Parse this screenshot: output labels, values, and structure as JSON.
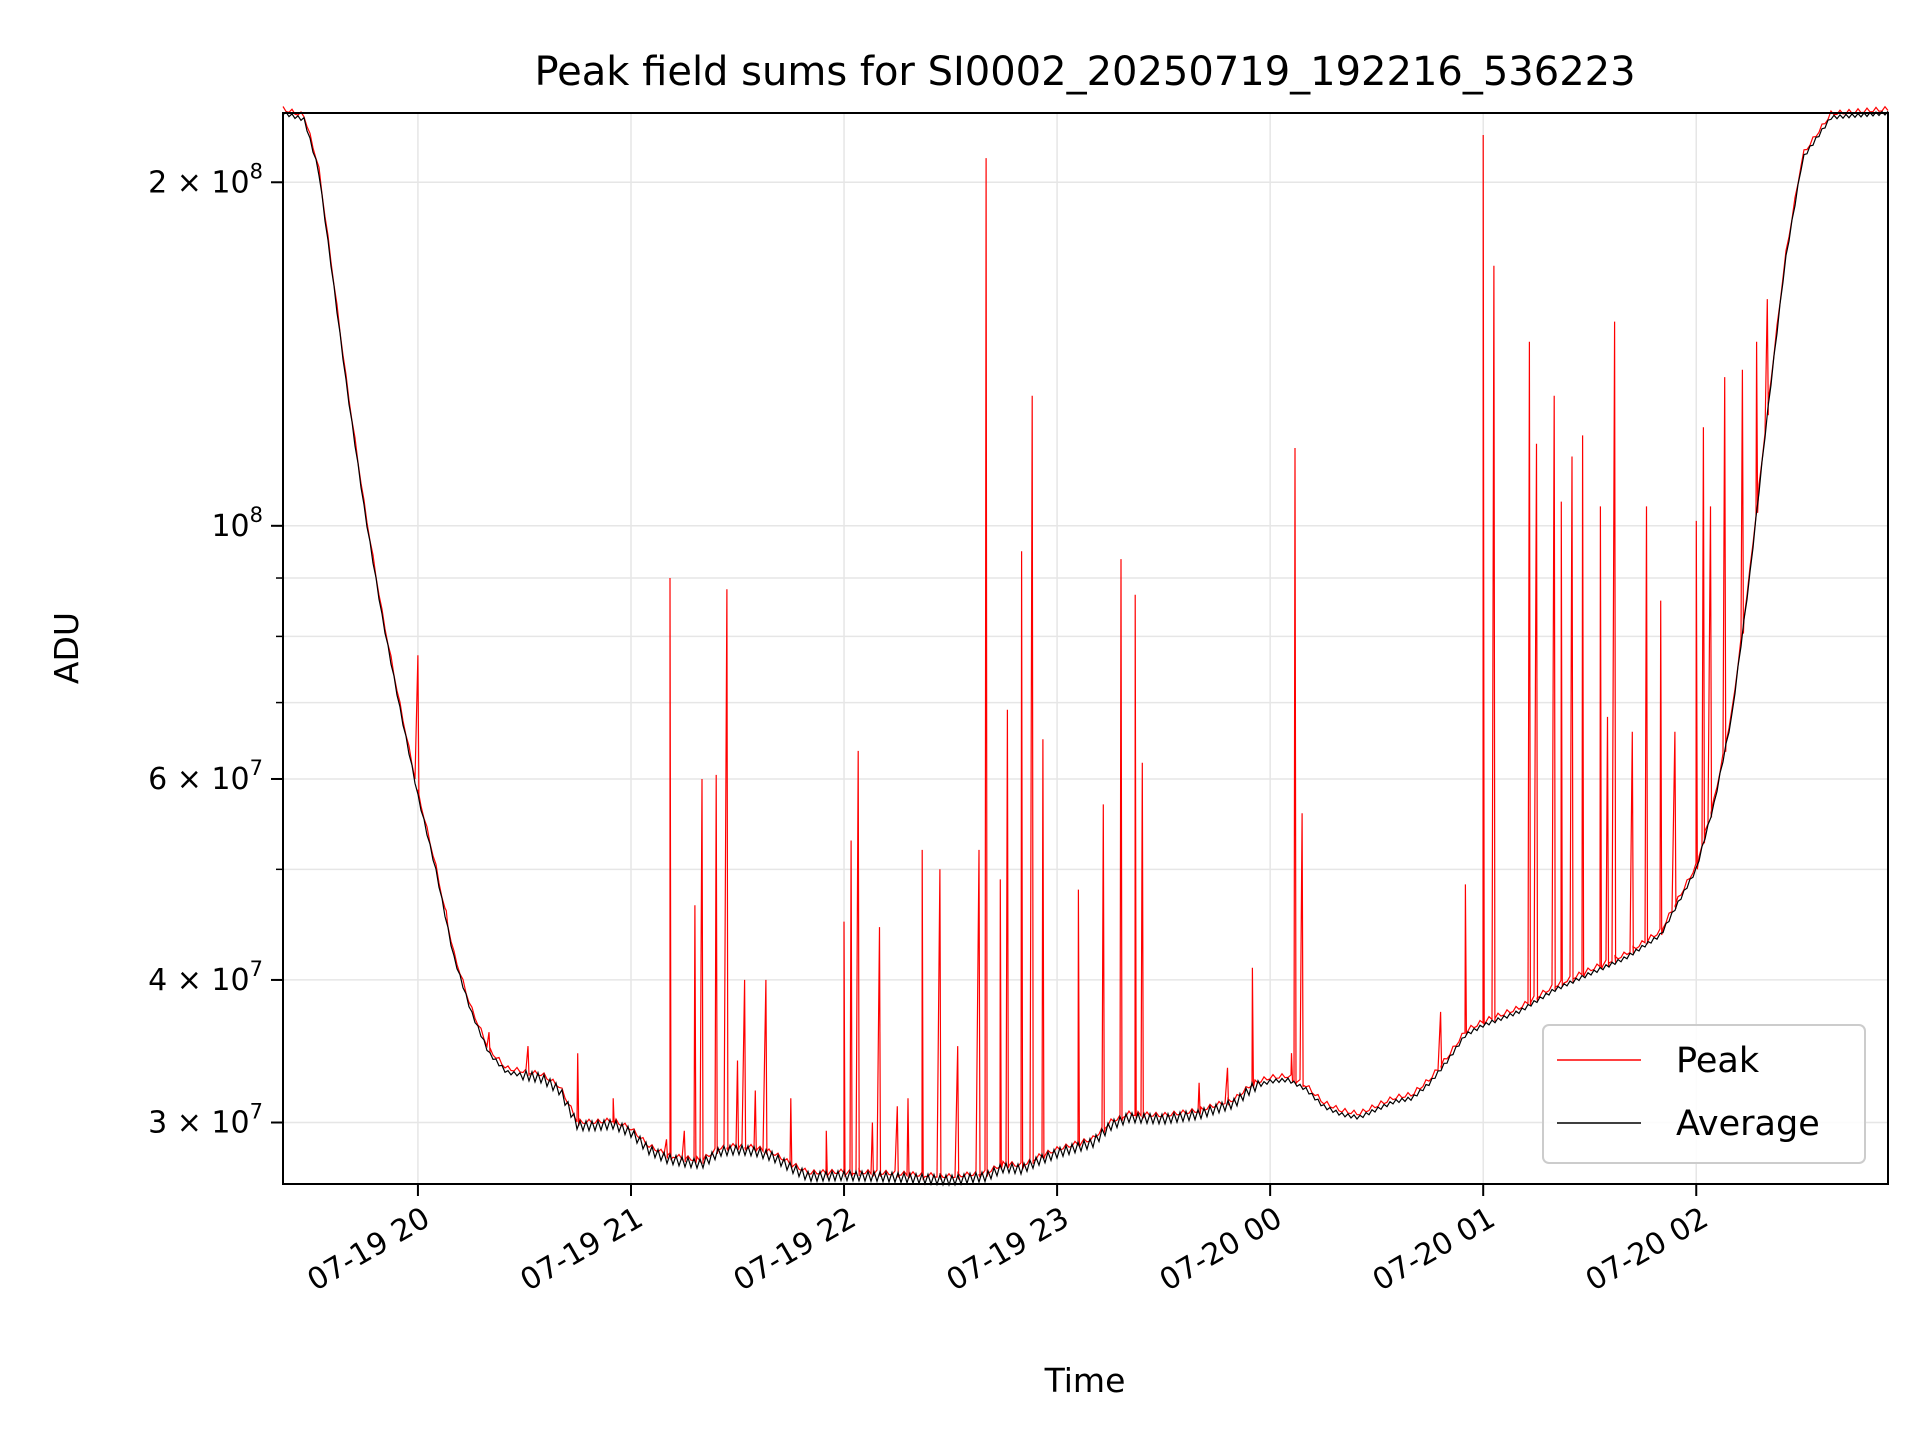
{
  "chart_data": {
    "type": "line",
    "title": "Peak field sums for SI0002_20250719_192216_536223",
    "xlabel": "Time",
    "ylabel": "ADU",
    "x_range": [
      "2025-07-19 19:22",
      "2025-07-20 02:54"
    ],
    "ylim": [
      26500000,
      230000000
    ],
    "y_scale": "log",
    "grid": true,
    "legend": "lower-right",
    "x_ticks": [
      {
        "t": "2025-07-19 20:00",
        "label": "07-19 20"
      },
      {
        "t": "2025-07-19 21:00",
        "label": "07-19 21"
      },
      {
        "t": "2025-07-19 22:00",
        "label": "07-19 22"
      },
      {
        "t": "2025-07-19 23:00",
        "label": "07-19 23"
      },
      {
        "t": "2025-07-20 00:00",
        "label": "07-20 00"
      },
      {
        "t": "2025-07-20 01:00",
        "label": "07-20 01"
      },
      {
        "t": "2025-07-20 02:00",
        "label": "07-20 02"
      }
    ],
    "y_ticks": [
      {
        "value": 30000000,
        "mantissa": "3",
        "exp": "7"
      },
      {
        "value": 40000000,
        "mantissa": "4",
        "exp": "7"
      },
      {
        "value": 60000000,
        "mantissa": "6",
        "exp": "7"
      },
      {
        "value": 100000000,
        "mantissa": "",
        "exp": "8"
      },
      {
        "value": 200000000,
        "mantissa": "2",
        "exp": "8"
      }
    ],
    "series": [
      {
        "name": "Average",
        "color": "#000000",
        "points": [
          [
            "2025-07-19 19:22",
            230000000
          ],
          [
            "2025-07-19 19:28",
            227000000
          ],
          [
            "2025-07-19 19:32",
            205000000
          ],
          [
            "2025-07-19 19:36",
            165000000
          ],
          [
            "2025-07-19 19:40",
            132000000
          ],
          [
            "2025-07-19 19:45",
            103000000
          ],
          [
            "2025-07-19 19:50",
            83000000
          ],
          [
            "2025-07-19 19:55",
            69000000
          ],
          [
            "2025-07-19 20:00",
            58000000
          ],
          [
            "2025-07-19 20:05",
            50000000
          ],
          [
            "2025-07-19 20:10",
            42000000
          ],
          [
            "2025-07-19 20:15",
            37500000
          ],
          [
            "2025-07-19 20:20",
            34500000
          ],
          [
            "2025-07-19 20:25",
            33200000
          ],
          [
            "2025-07-19 20:30",
            33000000
          ],
          [
            "2025-07-19 20:35",
            32800000
          ],
          [
            "2025-07-19 20:40",
            32000000
          ],
          [
            "2025-07-19 20:45",
            29800000
          ],
          [
            "2025-07-19 20:50",
            29800000
          ],
          [
            "2025-07-19 20:55",
            29900000
          ],
          [
            "2025-07-19 21:00",
            29400000
          ],
          [
            "2025-07-19 21:05",
            28400000
          ],
          [
            "2025-07-19 21:10",
            27900000
          ],
          [
            "2025-07-19 21:15",
            27700000
          ],
          [
            "2025-07-19 21:20",
            27600000
          ],
          [
            "2025-07-19 21:25",
            28300000
          ],
          [
            "2025-07-19 21:30",
            28400000
          ],
          [
            "2025-07-19 21:35",
            28300000
          ],
          [
            "2025-07-19 21:40",
            28000000
          ],
          [
            "2025-07-19 21:45",
            27400000
          ],
          [
            "2025-07-19 21:50",
            26900000
          ],
          [
            "2025-07-19 22:00",
            26950000
          ],
          [
            "2025-07-19 22:10",
            26900000
          ],
          [
            "2025-07-19 22:20",
            26800000
          ],
          [
            "2025-07-19 22:30",
            26700000
          ],
          [
            "2025-07-19 22:40",
            26900000
          ],
          [
            "2025-07-19 22:45",
            27400000
          ],
          [
            "2025-07-19 22:50",
            27300000
          ],
          [
            "2025-07-19 22:55",
            27800000
          ],
          [
            "2025-07-19 23:00",
            28200000
          ],
          [
            "2025-07-19 23:10",
            28800000
          ],
          [
            "2025-07-19 23:15",
            29800000
          ],
          [
            "2025-07-19 23:20",
            30300000
          ],
          [
            "2025-07-19 23:30",
            30200000
          ],
          [
            "2025-07-19 23:40",
            30500000
          ],
          [
            "2025-07-19 23:50",
            31200000
          ],
          [
            "2025-07-19 23:55",
            32200000
          ],
          [
            "2025-07-20 00:00",
            32600000
          ],
          [
            "2025-07-20 00:05",
            32700000
          ],
          [
            "2025-07-20 00:10",
            32100000
          ],
          [
            "2025-07-20 00:15",
            31000000
          ],
          [
            "2025-07-20 00:20",
            30500000
          ],
          [
            "2025-07-20 00:25",
            30300000
          ],
          [
            "2025-07-20 00:30",
            30800000
          ],
          [
            "2025-07-20 00:35",
            31300000
          ],
          [
            "2025-07-20 00:40",
            31500000
          ],
          [
            "2025-07-20 00:45",
            32500000
          ],
          [
            "2025-07-20 00:50",
            34000000
          ],
          [
            "2025-07-20 00:55",
            35800000
          ],
          [
            "2025-07-20 01:00",
            36500000
          ],
          [
            "2025-07-20 01:10",
            37500000
          ],
          [
            "2025-07-20 01:20",
            39200000
          ],
          [
            "2025-07-20 01:30",
            40500000
          ],
          [
            "2025-07-20 01:40",
            41800000
          ],
          [
            "2025-07-20 01:50",
            43800000
          ],
          [
            "2025-07-20 02:00",
            50000000
          ],
          [
            "2025-07-20 02:05",
            57000000
          ],
          [
            "2025-07-20 02:10",
            68000000
          ],
          [
            "2025-07-20 02:15",
            90000000
          ],
          [
            "2025-07-20 02:20",
            125000000
          ],
          [
            "2025-07-20 02:25",
            170000000
          ],
          [
            "2025-07-20 02:30",
            210000000
          ],
          [
            "2025-07-20 02:38",
            228000000
          ],
          [
            "2025-07-20 02:54",
            230000000
          ]
        ]
      },
      {
        "name": "Peak",
        "color": "#ff0000",
        "spikes": [
          [
            "2025-07-19 20:00",
            77000000
          ],
          [
            "2025-07-19 20:08",
            46000000
          ],
          [
            "2025-07-19 20:20",
            36000000
          ],
          [
            "2025-07-19 20:31",
            35000000
          ],
          [
            "2025-07-19 20:45",
            34500000
          ],
          [
            "2025-07-19 20:55",
            31500000
          ],
          [
            "2025-07-19 21:10",
            29000000
          ],
          [
            "2025-07-19 21:11",
            90000000
          ],
          [
            "2025-07-19 21:15",
            29500000
          ],
          [
            "2025-07-19 21:18",
            46500000
          ],
          [
            "2025-07-19 21:20",
            60000000
          ],
          [
            "2025-07-19 21:24",
            60500000
          ],
          [
            "2025-07-19 21:27",
            88000000
          ],
          [
            "2025-07-19 21:30",
            34000000
          ],
          [
            "2025-07-19 21:32",
            40000000
          ],
          [
            "2025-07-19 21:35",
            32000000
          ],
          [
            "2025-07-19 21:38",
            40000000
          ],
          [
            "2025-07-19 21:45",
            31500000
          ],
          [
            "2025-07-19 21:55",
            29500000
          ],
          [
            "2025-07-19 22:00",
            45000000
          ],
          [
            "2025-07-19 22:02",
            53000000
          ],
          [
            "2025-07-19 22:04",
            63500000
          ],
          [
            "2025-07-19 22:08",
            30000000
          ],
          [
            "2025-07-19 22:10",
            44500000
          ],
          [
            "2025-07-19 22:15",
            31000000
          ],
          [
            "2025-07-19 22:18",
            31500000
          ],
          [
            "2025-07-19 22:22",
            52000000
          ],
          [
            "2025-07-19 22:27",
            50000000
          ],
          [
            "2025-07-19 22:32",
            35000000
          ],
          [
            "2025-07-19 22:38",
            52000000
          ],
          [
            "2025-07-19 22:40",
            210000000
          ],
          [
            "2025-07-19 22:44",
            49000000
          ],
          [
            "2025-07-19 22:46",
            69000000
          ],
          [
            "2025-07-19 22:50",
            95000000
          ],
          [
            "2025-07-19 22:53",
            130000000
          ],
          [
            "2025-07-19 22:56",
            65000000
          ],
          [
            "2025-07-19 23:06",
            48000000
          ],
          [
            "2025-07-19 23:13",
            57000000
          ],
          [
            "2025-07-19 23:18",
            93500000
          ],
          [
            "2025-07-19 23:22",
            87000000
          ],
          [
            "2025-07-19 23:24",
            62000000
          ],
          [
            "2025-07-19 23:40",
            32500000
          ],
          [
            "2025-07-19 23:48",
            33500000
          ],
          [
            "2025-07-19 23:55",
            41000000
          ],
          [
            "2025-07-20 00:06",
            34500000
          ],
          [
            "2025-07-20 00:07",
            117000000
          ],
          [
            "2025-07-20 00:09",
            56000000
          ],
          [
            "2025-07-20 00:48",
            37500000
          ],
          [
            "2025-07-20 00:55",
            48500000
          ],
          [
            "2025-07-20 01:00",
            220000000
          ],
          [
            "2025-07-20 01:03",
            169000000
          ],
          [
            "2025-07-20 01:13",
            145000000
          ],
          [
            "2025-07-20 01:15",
            118000000
          ],
          [
            "2025-07-20 01:20",
            130000000
          ],
          [
            "2025-07-20 01:22",
            105000000
          ],
          [
            "2025-07-20 01:25",
            115000000
          ],
          [
            "2025-07-20 01:28",
            120000000
          ],
          [
            "2025-07-20 01:33",
            104000000
          ],
          [
            "2025-07-20 01:35",
            68000000
          ],
          [
            "2025-07-20 01:37",
            151000000
          ],
          [
            "2025-07-20 01:42",
            66000000
          ],
          [
            "2025-07-20 01:46",
            104000000
          ],
          [
            "2025-07-20 01:50",
            86000000
          ],
          [
            "2025-07-20 01:54",
            66000000
          ],
          [
            "2025-07-20 02:00",
            101000000
          ],
          [
            "2025-07-20 02:02",
            122000000
          ],
          [
            "2025-07-20 02:04",
            104000000
          ],
          [
            "2025-07-20 02:08",
            135000000
          ],
          [
            "2025-07-20 02:13",
            137000000
          ],
          [
            "2025-07-20 02:17",
            145000000
          ],
          [
            "2025-07-20 02:20",
            158000000
          ]
        ]
      }
    ]
  }
}
